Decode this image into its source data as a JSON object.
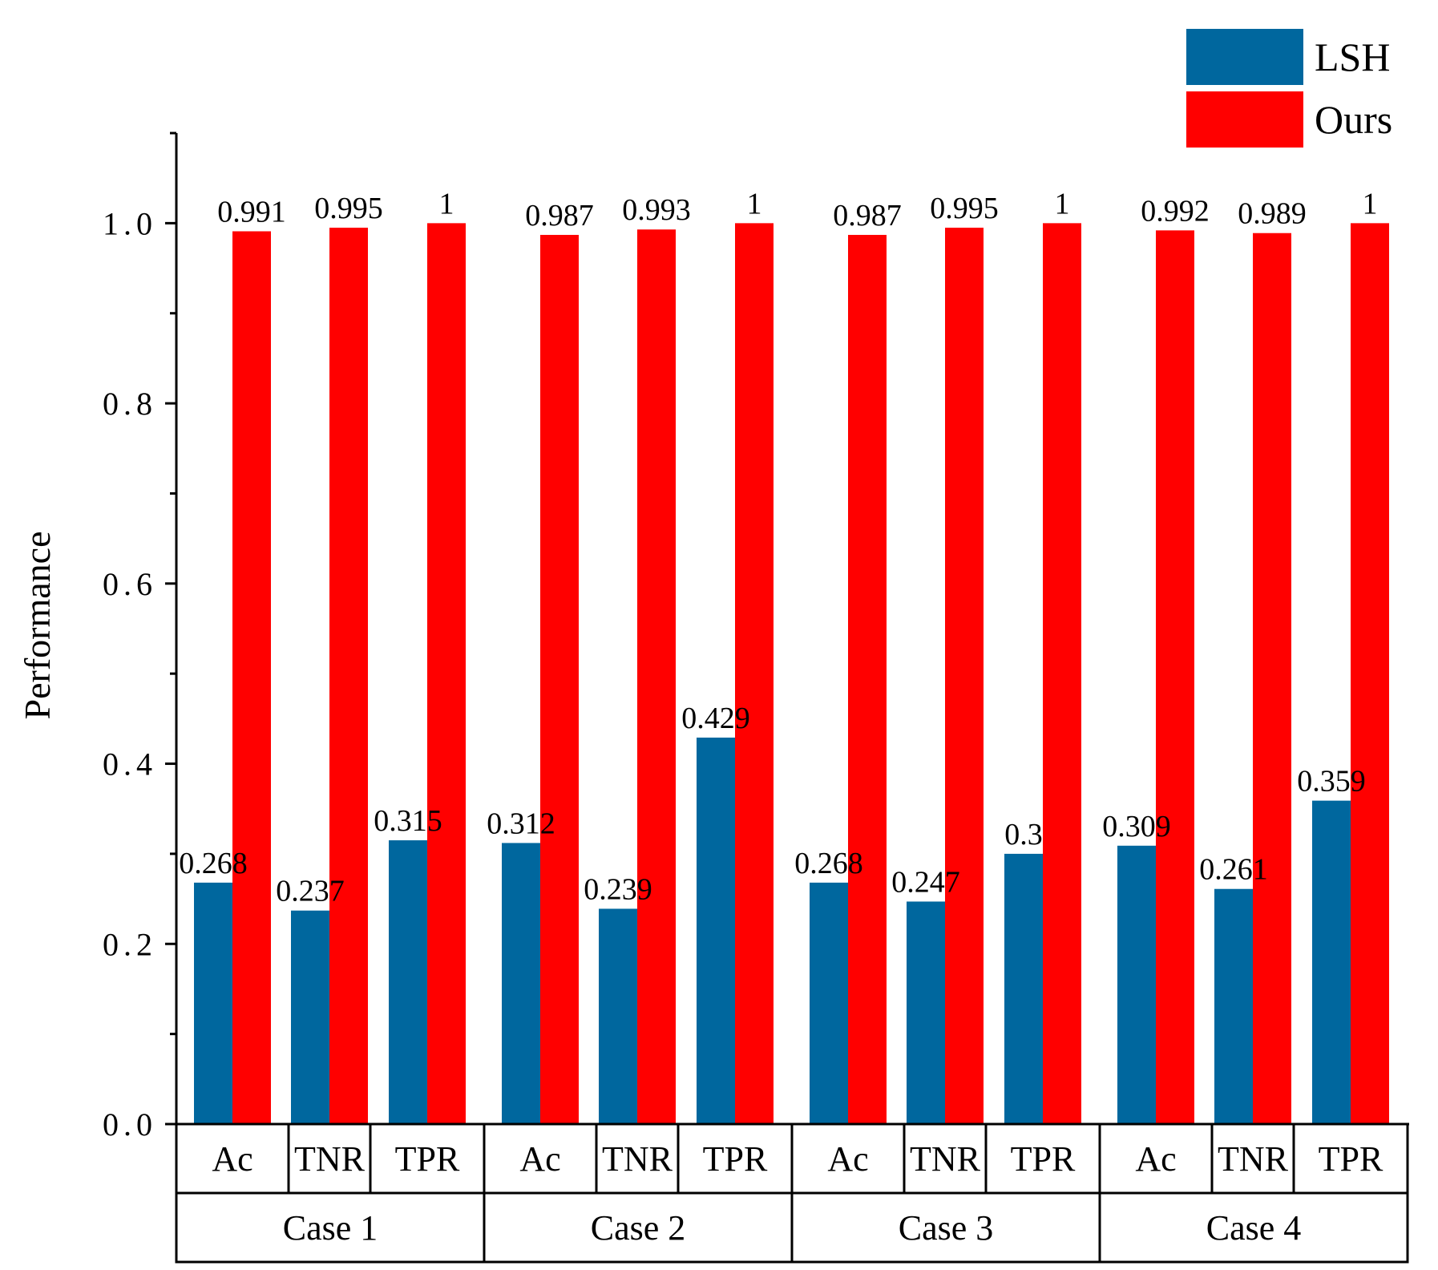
{
  "chart_data": {
    "type": "bar",
    "title": "",
    "xlabel": "",
    "ylabel": "Performance",
    "ylim": [
      0,
      1.1
    ],
    "yticks": [
      "0.0",
      "0.2",
      "0.4",
      "0.6",
      "0.8",
      "1.0"
    ],
    "groups": [
      "Case 1",
      "Case 2",
      "Case 3",
      "Case 4"
    ],
    "categories": [
      "Ac",
      "TNR",
      "TPR"
    ],
    "legend_position": "top-right",
    "series": [
      {
        "name": "LSH",
        "color": "#00679E",
        "values": [
          [
            0.268,
            0.237,
            0.315
          ],
          [
            0.312,
            0.239,
            0.429
          ],
          [
            0.268,
            0.247,
            0.3
          ],
          [
            0.309,
            0.261,
            0.359
          ]
        ],
        "labels": [
          [
            "0.268",
            "0.237",
            "0.315"
          ],
          [
            "0.312",
            "0.239",
            "0.429"
          ],
          [
            "0.268",
            "0.247",
            "0.3"
          ],
          [
            "0.309",
            "0.261",
            "0.359"
          ]
        ]
      },
      {
        "name": "Ours",
        "color": "#FF0000",
        "values": [
          [
            0.991,
            0.995,
            1
          ],
          [
            0.987,
            0.993,
            1
          ],
          [
            0.987,
            0.995,
            1
          ],
          [
            0.992,
            0.989,
            1
          ]
        ],
        "labels": [
          [
            "0.991",
            "0.995",
            "1"
          ],
          [
            "0.987",
            "0.993",
            "1"
          ],
          [
            "0.987",
            "0.995",
            "1"
          ],
          [
            "0.992",
            "0.989",
            "1"
          ]
        ]
      }
    ]
  }
}
